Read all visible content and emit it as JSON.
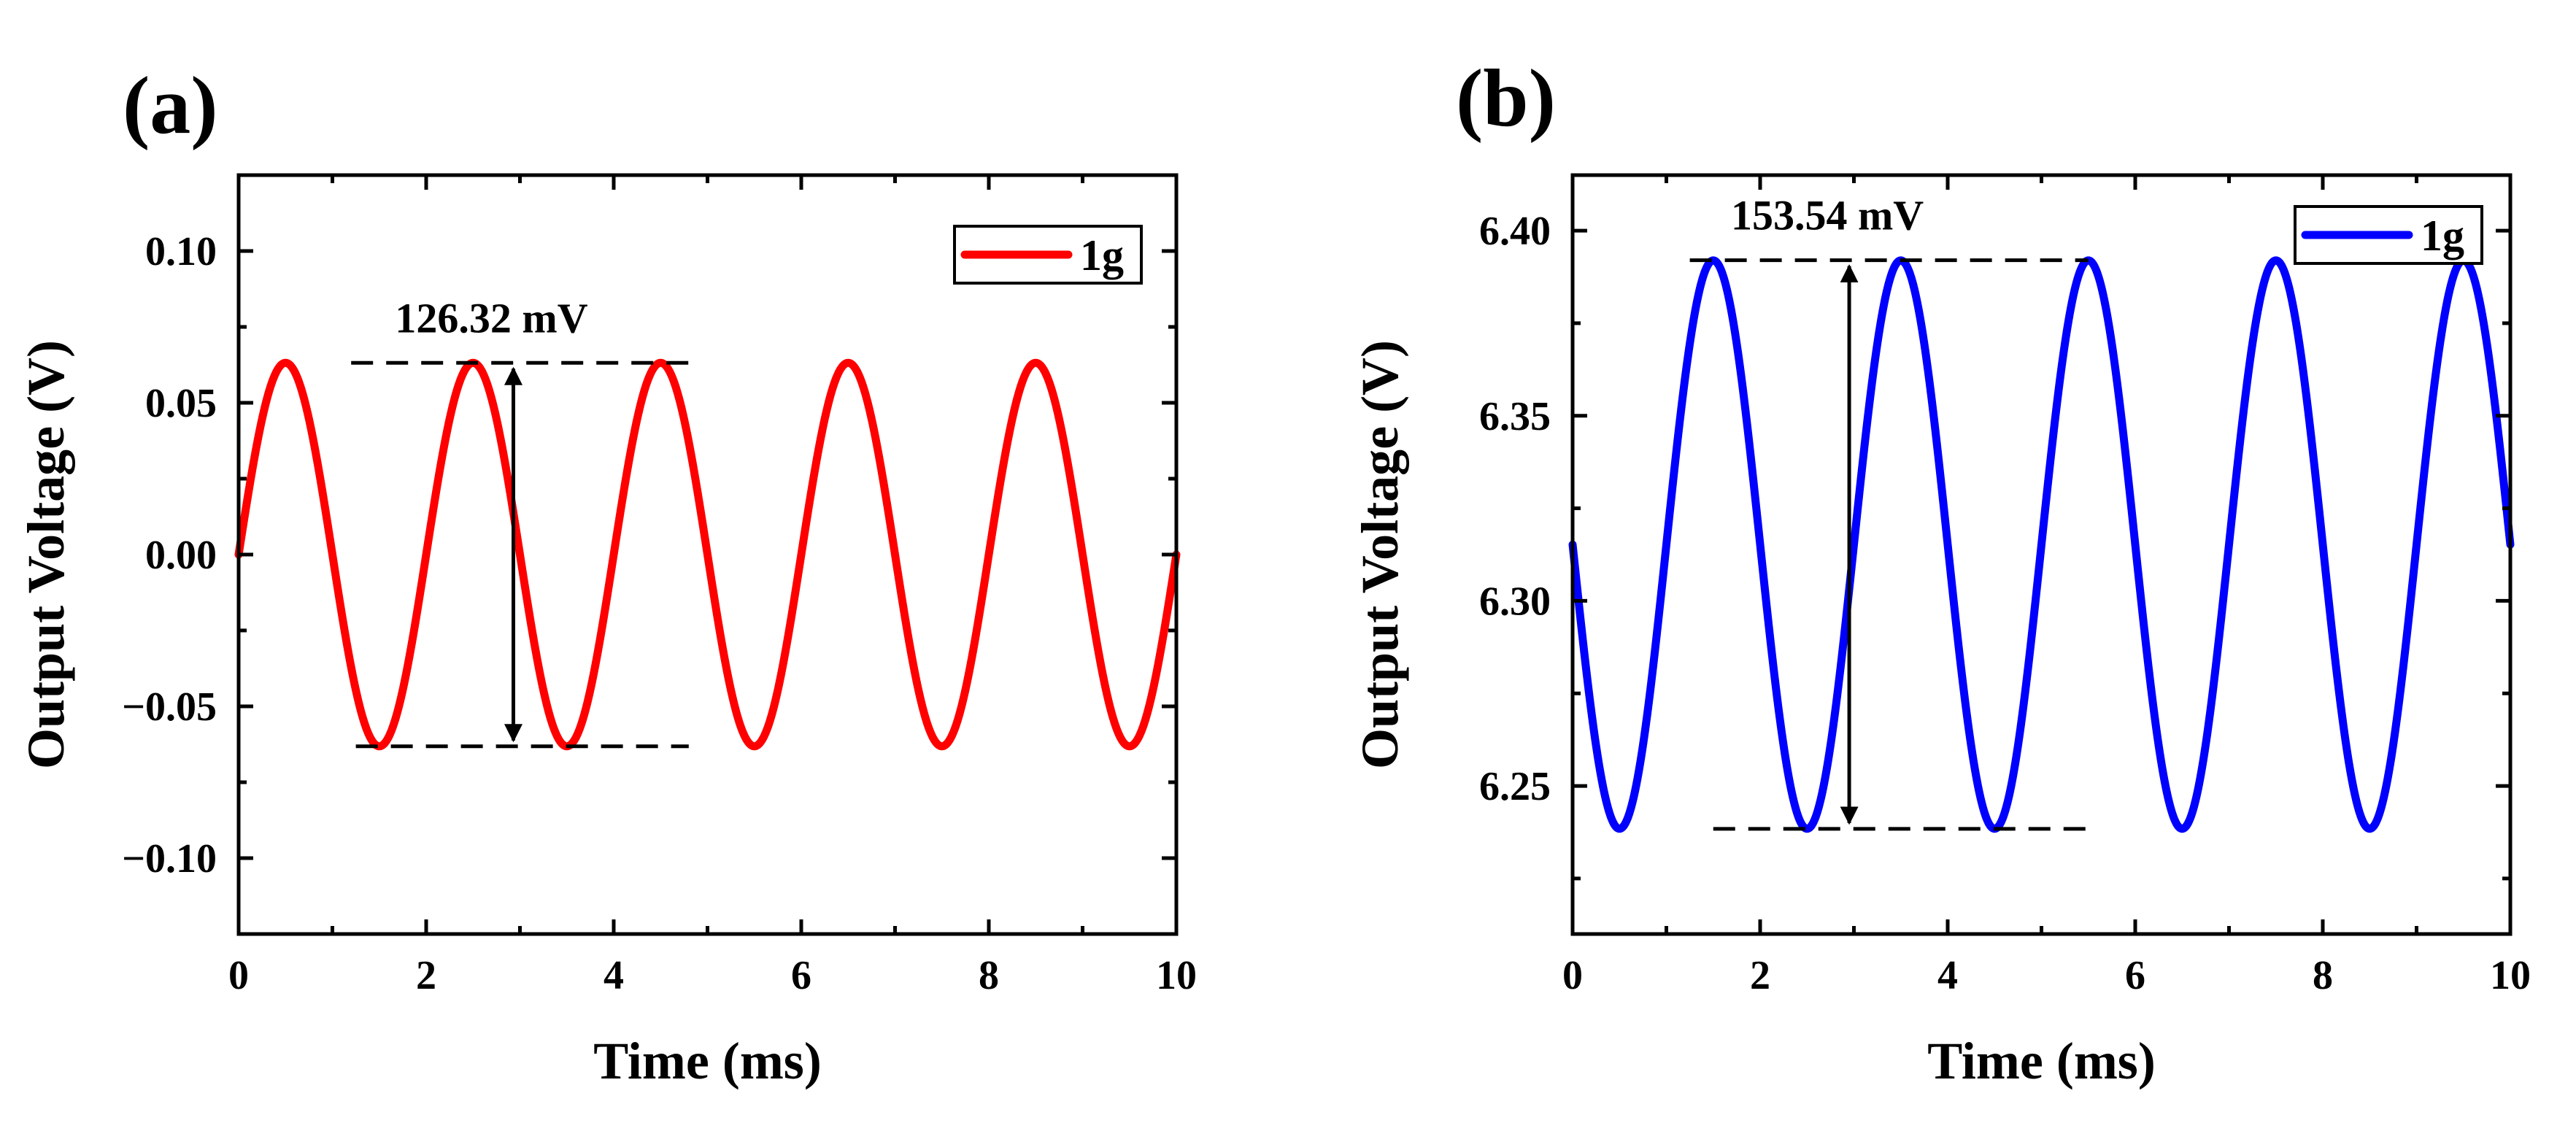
{
  "chart_data": [
    {
      "type": "line",
      "panel_label": "(a)",
      "xlabel": "Time (ms)",
      "ylabel": "Output Voltage (V)",
      "xlim": [
        0,
        10
      ],
      "ylim": [
        -0.125,
        0.125
      ],
      "xticks": [
        0,
        2,
        4,
        6,
        8,
        10
      ],
      "xtick_labels": [
        "0",
        "2",
        "4",
        "6",
        "8",
        "10"
      ],
      "yticks": [
        -0.1,
        -0.05,
        0.0,
        0.05,
        0.1
      ],
      "ytick_labels": [
        "−0.10",
        "−0.05",
        "0.00",
        "0.05",
        "0.10"
      ],
      "series": [
        {
          "name": "1g",
          "color": "#ff0000",
          "function": "sine",
          "offset": 0.0,
          "amplitude": 0.06316,
          "period_ms": 2.0,
          "phase_ms": 0.0,
          "x_start": 0,
          "x_end": 10
        }
      ],
      "annotation": {
        "text": "126.32 mV",
        "value_mV": 126.32,
        "arrow_x": 2.93,
        "top_y": 0.06316,
        "bottom_y": -0.06316,
        "top_dash_x": [
          1.2,
          4.8
        ],
        "bottom_dash_x": [
          1.25,
          4.8
        ]
      },
      "legend": {
        "label": "1g",
        "position": "top-right"
      }
    },
    {
      "type": "line",
      "panel_label": "(b)",
      "xlabel": "Time (ms)",
      "ylabel": "Output Voltage (V)",
      "xlim": [
        0,
        10
      ],
      "ylim": [
        6.21,
        6.415
      ],
      "xticks": [
        0,
        2,
        4,
        6,
        8,
        10
      ],
      "xtick_labels": [
        "0",
        "2",
        "4",
        "6",
        "8",
        "10"
      ],
      "yticks": [
        6.25,
        6.3,
        6.35,
        6.4
      ],
      "ytick_labels": [
        "6.25",
        "6.30",
        "6.35",
        "6.40"
      ],
      "series": [
        {
          "name": "1g",
          "color": "#0000ff",
          "function": "sine",
          "offset": 6.3152,
          "amplitude": 0.07677,
          "period_ms": 2.0,
          "phase_ms": 1.0,
          "x_start": 0,
          "x_end": 10
        }
      ],
      "annotation": {
        "text": "153.54 mV",
        "value_mV": 153.54,
        "arrow_x": 2.95,
        "top_y": 6.392,
        "bottom_y": 6.2384,
        "top_dash_x": [
          1.25,
          5.5
        ],
        "bottom_dash_x": [
          1.5,
          5.5
        ]
      },
      "legend": {
        "label": "1g",
        "position": "top-right"
      }
    }
  ]
}
